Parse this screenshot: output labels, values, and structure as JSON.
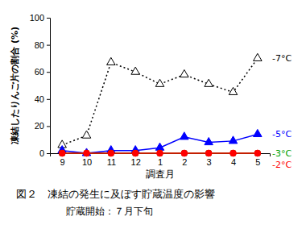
{
  "chart_data": {
    "type": "line",
    "title": "図２　凍結の発生に及ぼす貯蔵温度の影響",
    "subtitle": "貯蔵開始：７月下旬",
    "x_label": "調査月",
    "y_label": "凍結したりんご片の割合 (%)",
    "categories": [
      "9",
      "10",
      "11",
      "12",
      "1",
      "2",
      "3",
      "4",
      "5"
    ],
    "ylim": [
      0,
      100
    ],
    "yticks": [
      0,
      20,
      40,
      60,
      80,
      100
    ],
    "grid": false,
    "series": [
      {
        "name": "-7°C",
        "color": "#000000",
        "marker": "triangle-open",
        "line_style": "dotted",
        "values": [
          6,
          13,
          67,
          60,
          51,
          58,
          51,
          45,
          70
        ]
      },
      {
        "name": "-5°C",
        "color": "#0000ff",
        "marker": "triangle",
        "line_style": "solid",
        "values": [
          2,
          0,
          2,
          2,
          4,
          12,
          8,
          9,
          14
        ]
      },
      {
        "name": "-3°C",
        "color": "#00a000",
        "marker": "square",
        "line_style": "solid",
        "values": [
          0,
          0,
          0,
          0,
          0,
          0,
          0,
          0,
          0
        ]
      },
      {
        "name": "-2°C",
        "color": "#ff0000",
        "marker": "circle",
        "line_style": "solid",
        "values": [
          0,
          0,
          0,
          0,
          0,
          0,
          0,
          0,
          0
        ]
      }
    ]
  }
}
